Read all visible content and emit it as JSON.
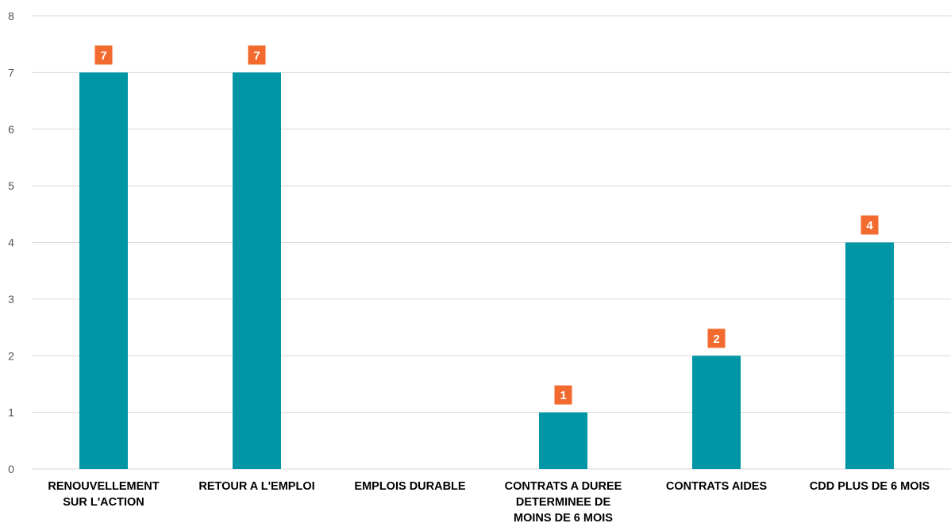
{
  "chart_data": {
    "type": "bar",
    "title": "",
    "xlabel": "",
    "ylabel": "",
    "ylim": [
      0,
      8
    ],
    "yticks": [
      0,
      1,
      2,
      3,
      4,
      5,
      6,
      7,
      8
    ],
    "grid": true,
    "categories": [
      [
        "RENOUVELLEMENT",
        "SUR L'ACTION"
      ],
      [
        "RETOUR A L'EMPLOI"
      ],
      [
        "EMPLOIS DURABLE"
      ],
      [
        "CONTRATS A DUREE",
        "DETERMINEE DE",
        "MOINS DE 6 MOIS"
      ],
      [
        "CONTRATS AIDES"
      ],
      [
        "CDD PLUS DE 6 MOIS"
      ]
    ],
    "values": [
      7,
      7,
      null,
      1,
      2,
      4
    ],
    "data_labels": [
      "7",
      "7",
      "",
      "1",
      "2",
      "4"
    ],
    "colors": {
      "bar": "#0096A6",
      "label_bg": "#F26A2E",
      "grid": "#D9D9D9"
    }
  }
}
